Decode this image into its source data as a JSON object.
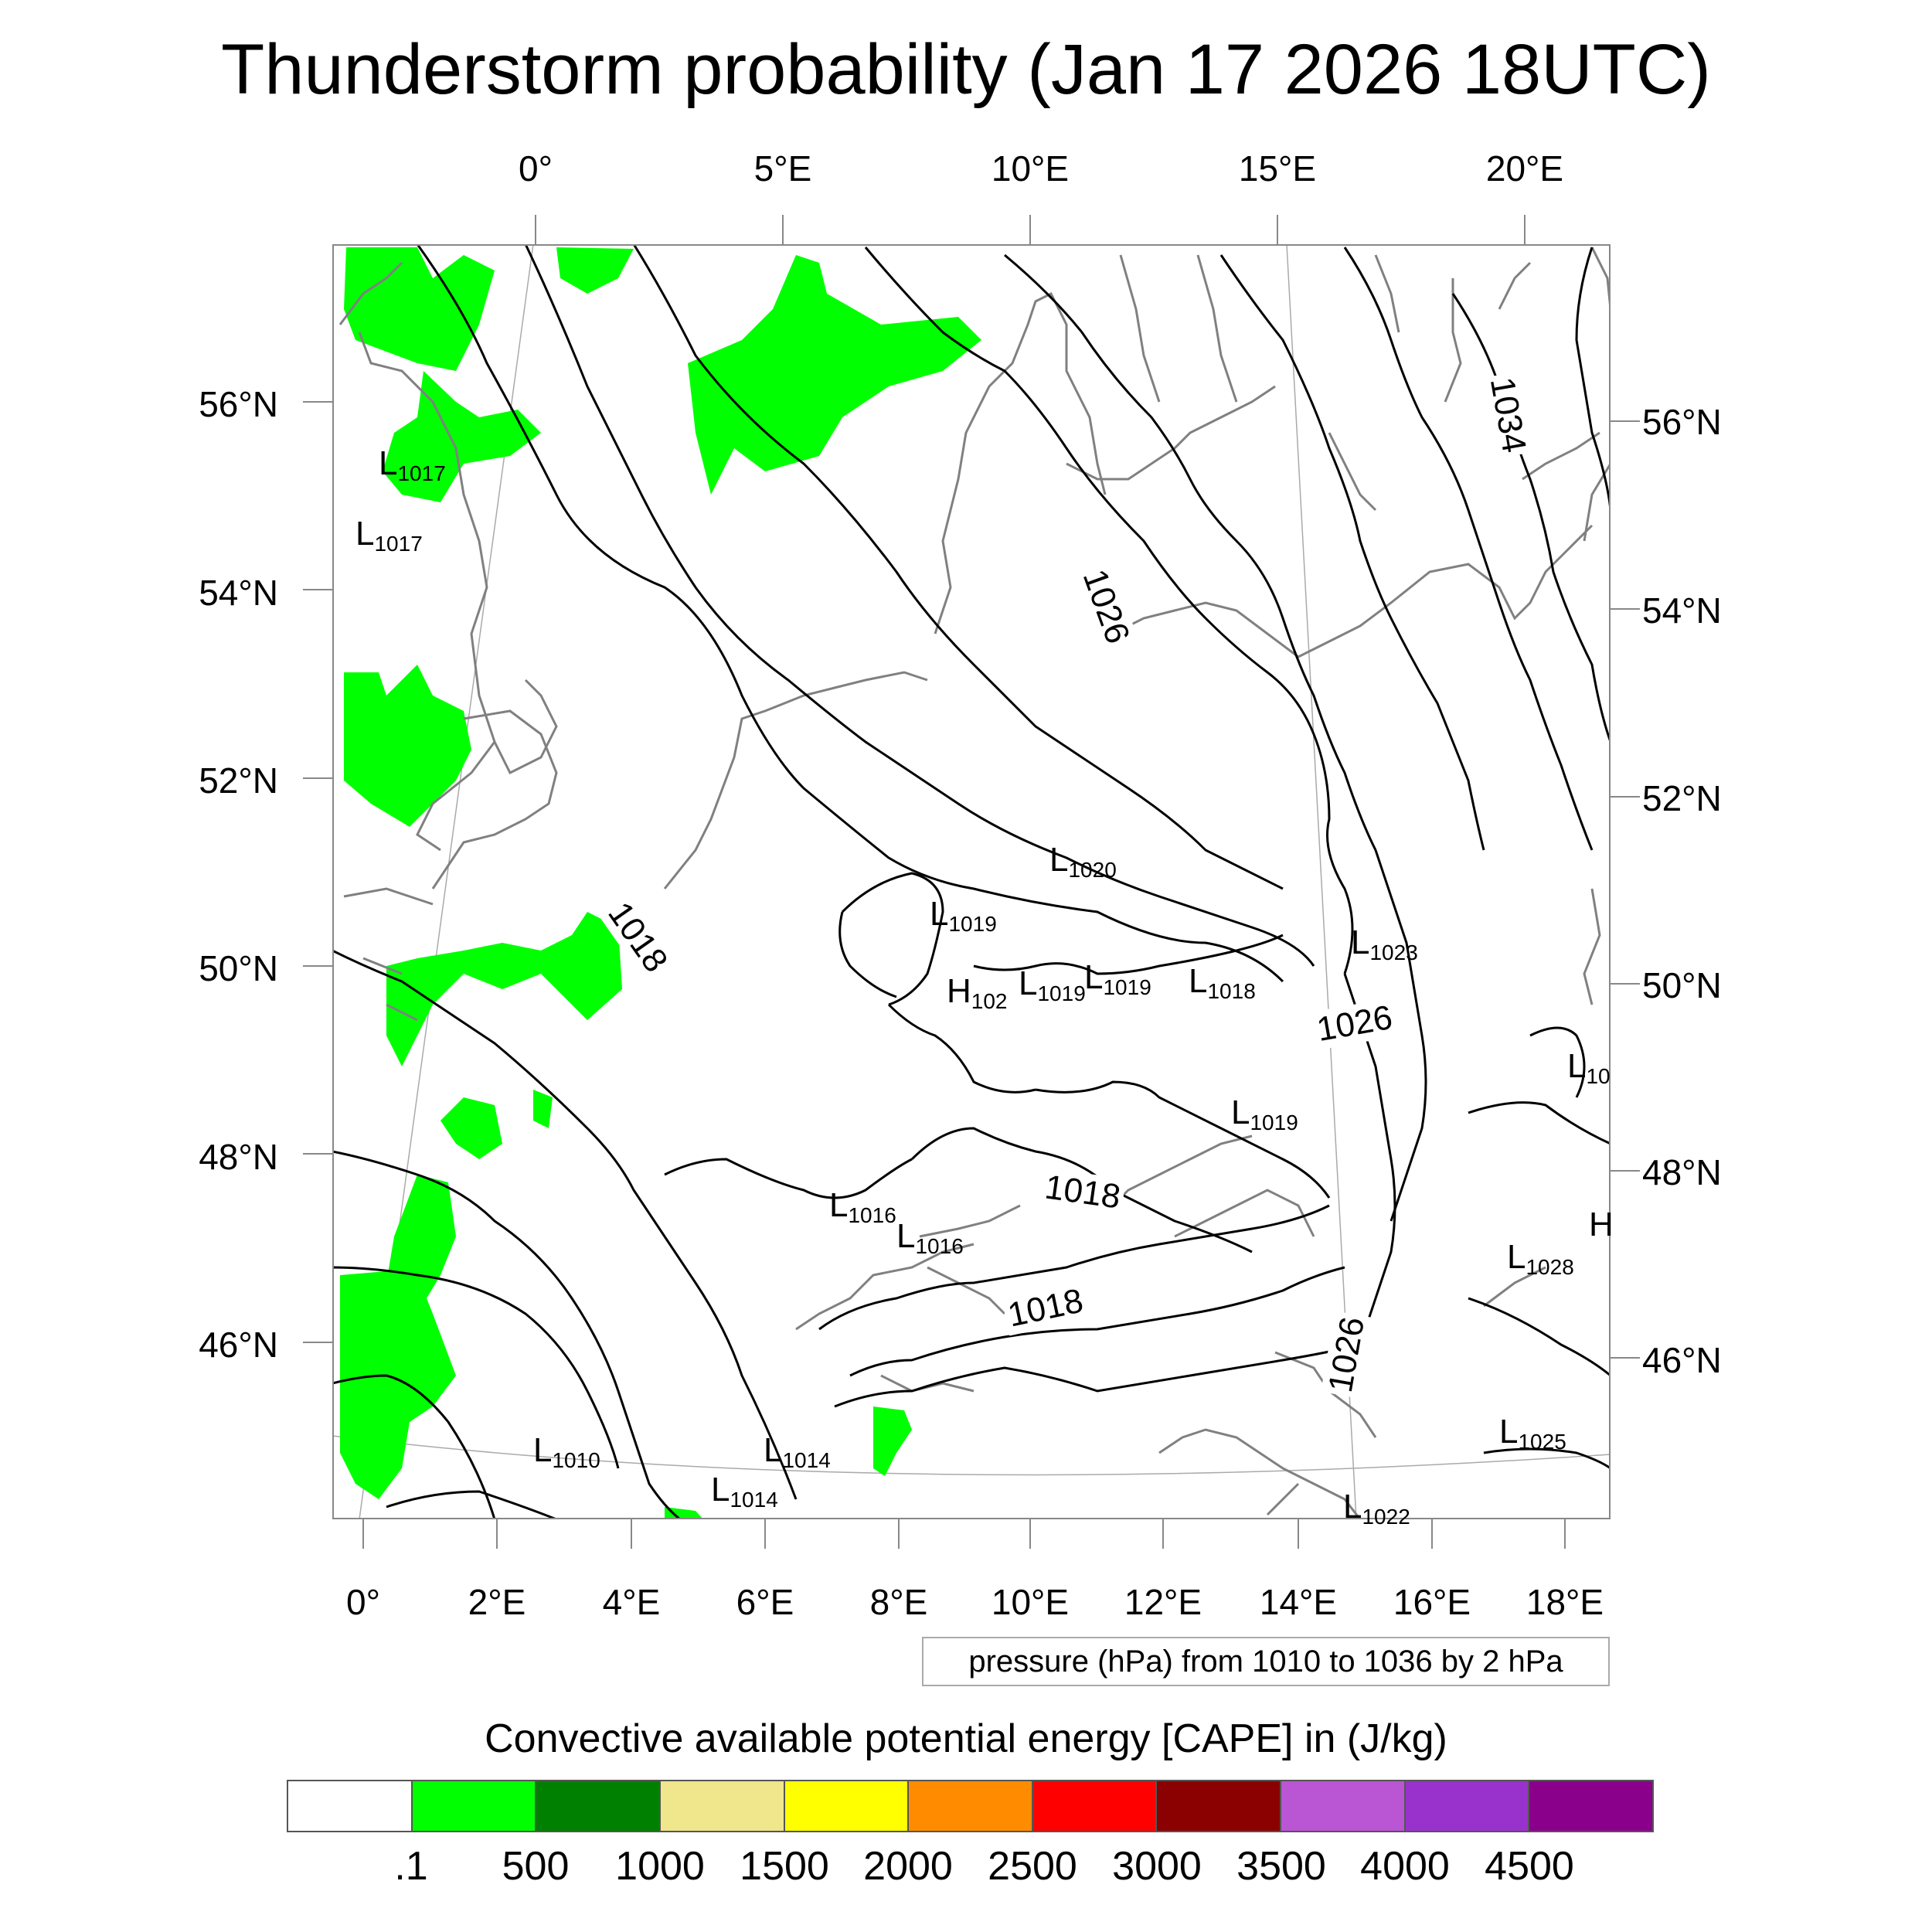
{
  "title": "Thunderstorm probability (Jan 17 2026 18UTC)",
  "top_lon_labels": [
    "0°",
    "5°E",
    "10°E",
    "15°E",
    "20°E"
  ],
  "bottom_lon_labels": [
    "0°",
    "2°E",
    "4°E",
    "6°E",
    "8°E",
    "10°E",
    "12°E",
    "14°E",
    "16°E",
    "18°E"
  ],
  "left_lat_labels": [
    "56°N",
    "54°N",
    "52°N",
    "50°N",
    "48°N",
    "46°N"
  ],
  "right_lat_labels": [
    "56°N",
    "54°N",
    "52°N",
    "50°N",
    "48°N",
    "46°N"
  ],
  "pressure_info": "pressure (hPa) from 1010 to 1036 by 2 hPa",
  "colorbar": {
    "title": "Convective available potential energy [CAPE] in (J/kg)",
    "colors": [
      "#ffffff",
      "#00ff00",
      "#008000",
      "#f0e68c",
      "#ffff00",
      "#ff8c00",
      "#ff0000",
      "#8b0000",
      "#ba55d3",
      "#9932cc",
      "#8b008b"
    ],
    "tick_labels": [
      ".1",
      "500",
      "1000",
      "1500",
      "2000",
      "2500",
      "3000",
      "3500",
      "4000",
      "4500"
    ]
  },
  "pressure_centers": [
    {
      "type": "L",
      "value": "1017"
    },
    {
      "type": "L",
      "value": "1017"
    },
    {
      "type": "L",
      "value": "1020"
    },
    {
      "type": "L",
      "value": "1019"
    },
    {
      "type": "H",
      "value": "102"
    },
    {
      "type": "L",
      "value": "1019"
    },
    {
      "type": "L",
      "value": "1019"
    },
    {
      "type": "L",
      "value": "1018"
    },
    {
      "type": "L",
      "value": "1023"
    },
    {
      "type": "L",
      "value": "1019"
    },
    {
      "type": "L",
      "value": "10"
    },
    {
      "type": "L",
      "value": "1016"
    },
    {
      "type": "L",
      "value": "1016"
    },
    {
      "type": "L",
      "value": "1028"
    },
    {
      "type": "L",
      "value": "1010"
    },
    {
      "type": "L",
      "value": "1014"
    },
    {
      "type": "L",
      "value": "1014"
    },
    {
      "type": "L",
      "value": "1025"
    },
    {
      "type": "L",
      "value": "1022"
    },
    {
      "type": "H",
      "value": ""
    }
  ],
  "isobar_labels": [
    "1018",
    "1026",
    "1034",
    "1026",
    "1018",
    "1018",
    "1026"
  ],
  "colors": {
    "coast": "#808080",
    "isobar": "#000000",
    "cape_low": "#00ff00",
    "grid": "#aaaaaa"
  }
}
